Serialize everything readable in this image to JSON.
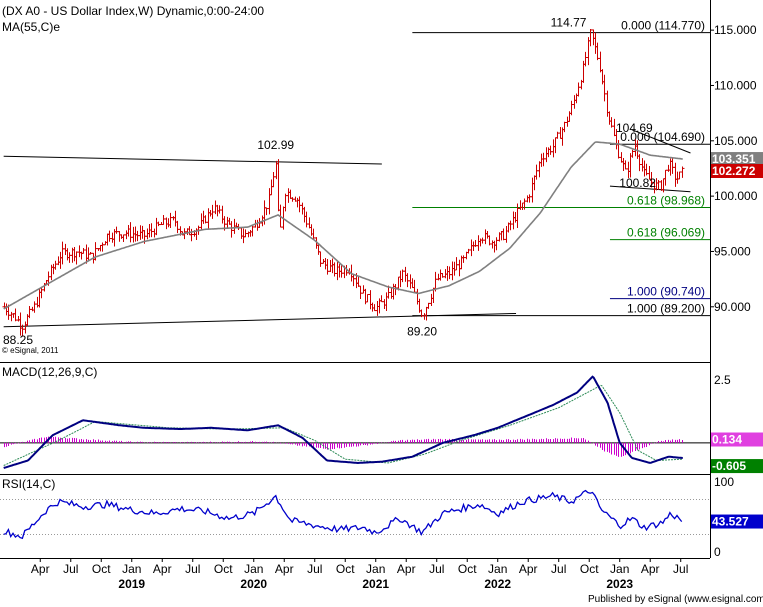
{
  "header": {
    "title": "(DX A0 - US Dollar Index,W) Dynamic,0:00-24:00",
    "ma_label": "MA(55,C)e",
    "copyright": "© eSignal, 2011",
    "footer": "Published by eSignal (www.esignal.com)"
  },
  "colors": {
    "price_bar": "#cc0000",
    "ma_line": "#808080",
    "fib_black": "#000000",
    "fib_green": "#008000",
    "fib_blue": "#000080",
    "macd_line": "#000080",
    "macd_signal": "#2e8b57",
    "macd_hist": "#cc00cc",
    "rsi_line": "#0000cc",
    "last_price_bg": "#cc0000",
    "ma_tag_bg": "#808080",
    "macd_hist_tag_bg": "#e040e0",
    "macd_tag_bg": "#008000",
    "rsi_tag_bg": "#0000cc"
  },
  "chart_data": [
    {
      "type": "line",
      "name": "price",
      "title": "(DX A0 - US Dollar Index,W) Dynamic,0:00-24:00",
      "ylim": [
        87,
        117
      ],
      "yticks": [
        "115.000",
        "110.000",
        "105.000",
        "100.000",
        "95.000",
        "90.000"
      ],
      "ytick_values": [
        115,
        110,
        105,
        100,
        95,
        90
      ],
      "x_tick_labels": [
        "Apr",
        "Jul",
        "Oct",
        "Jan",
        "Apr",
        "Jul",
        "Oct",
        "Jan",
        "Apr",
        "Jul",
        "Oct",
        "Jan",
        "Apr",
        "Jul",
        "Oct",
        "Jan",
        "Apr",
        "Jul",
        "Oct",
        "Jan",
        "Apr",
        "Jul"
      ],
      "x_tick_dates": [
        2018.25,
        2018.5,
        2018.75,
        2019.0,
        2019.25,
        2019.5,
        2019.75,
        2020.0,
        2020.25,
        2020.5,
        2020.75,
        2021.0,
        2021.25,
        2021.5,
        2021.75,
        2022.0,
        2022.25,
        2022.5,
        2022.75,
        2023.0,
        2023.25,
        2023.5
      ],
      "year_labels": [
        "2019",
        "2020",
        "2021",
        "2022",
        "2023"
      ],
      "year_dates": [
        2019.0,
        2020.0,
        2021.0,
        2022.0,
        2023.0
      ],
      "price_keypoints": [
        [
          2017.95,
          90.0
        ],
        [
          2018.05,
          89.0
        ],
        [
          2018.1,
          88.25
        ],
        [
          2018.2,
          90.0
        ],
        [
          2018.3,
          92.5
        ],
        [
          2018.42,
          94.8
        ],
        [
          2018.55,
          95.0
        ],
        [
          2018.67,
          94.5
        ],
        [
          2018.8,
          96.5
        ],
        [
          2018.95,
          96.7
        ],
        [
          2019.1,
          96.4
        ],
        [
          2019.25,
          97.5
        ],
        [
          2019.35,
          97.8
        ],
        [
          2019.42,
          96.5
        ],
        [
          2019.55,
          97.2
        ],
        [
          2019.67,
          99.0
        ],
        [
          2019.78,
          97.5
        ],
        [
          2019.92,
          96.4
        ],
        [
          2020.02,
          97.5
        ],
        [
          2020.12,
          99.5
        ],
        [
          2020.18,
          102.99
        ],
        [
          2020.21,
          96.0
        ],
        [
          2020.25,
          100.5
        ],
        [
          2020.35,
          99.8
        ],
        [
          2020.45,
          97.2
        ],
        [
          2020.55,
          94.0
        ],
        [
          2020.67,
          93.2
        ],
        [
          2020.78,
          93.5
        ],
        [
          2020.9,
          91.0
        ],
        [
          2021.0,
          89.9
        ],
        [
          2021.1,
          90.8
        ],
        [
          2021.22,
          93.0
        ],
        [
          2021.3,
          91.5
        ],
        [
          2021.38,
          89.2
        ],
        [
          2021.5,
          92.5
        ],
        [
          2021.6,
          93.0
        ],
        [
          2021.72,
          94.2
        ],
        [
          2021.85,
          96.5
        ],
        [
          2021.95,
          95.9
        ],
        [
          2022.05,
          96.5
        ],
        [
          2022.15,
          98.3
        ],
        [
          2022.25,
          100.0
        ],
        [
          2022.35,
          103.5
        ],
        [
          2022.45,
          104.5
        ],
        [
          2022.55,
          106.5
        ],
        [
          2022.62,
          108.5
        ],
        [
          2022.7,
          111.5
        ],
        [
          2022.76,
          114.77
        ],
        [
          2022.83,
          112.0
        ],
        [
          2022.9,
          107.5
        ],
        [
          2022.97,
          104.5
        ],
        [
          2023.05,
          102.0
        ],
        [
          2023.12,
          104.69
        ],
        [
          2023.2,
          102.0
        ],
        [
          2023.28,
          101.0
        ],
        [
          2023.33,
          100.82
        ],
        [
          2023.4,
          103.0
        ],
        [
          2023.46,
          101.5
        ],
        [
          2023.52,
          102.272
        ]
      ],
      "ma55": [
        [
          2017.95,
          89.8
        ],
        [
          2018.3,
          92.0
        ],
        [
          2018.7,
          94.5
        ],
        [
          2019.1,
          95.9
        ],
        [
          2019.6,
          97.0
        ],
        [
          2019.95,
          97.2
        ],
        [
          2020.2,
          98.3
        ],
        [
          2020.5,
          96.0
        ],
        [
          2020.8,
          93.0
        ],
        [
          2021.1,
          91.8
        ],
        [
          2021.35,
          91.2
        ],
        [
          2021.6,
          91.9
        ],
        [
          2021.85,
          93.2
        ],
        [
          2022.1,
          95.3
        ],
        [
          2022.35,
          98.5
        ],
        [
          2022.6,
          102.6
        ],
        [
          2022.8,
          104.9
        ],
        [
          2023.0,
          104.7
        ],
        [
          2023.25,
          103.7
        ],
        [
          2023.52,
          103.351
        ]
      ],
      "last_price": "102.272",
      "ma_value": "103.351",
      "trendlines": [
        {
          "from": [
            2017.95,
            103.6
          ],
          "to": [
            2021.05,
            102.9
          ]
        },
        {
          "from": [
            2017.95,
            88.2
          ],
          "to": [
            2022.15,
            89.4
          ]
        },
        {
          "from": [
            2023.1,
            106.0
          ],
          "to": [
            2023.58,
            103.9
          ]
        },
        {
          "from": [
            2022.92,
            100.9
          ],
          "to": [
            2023.58,
            100.4
          ]
        }
      ],
      "fib_levels": [
        {
          "label": "0.000 (114.770)",
          "value": 114.77,
          "color": "black",
          "from": 2021.3
        },
        {
          "label": "0.000 (104.690)",
          "value": 104.69,
          "color": "black",
          "from": 2022.92
        },
        {
          "label": "0.618 (98.968)",
          "value": 98.968,
          "color": "green",
          "from": 2021.3
        },
        {
          "label": "0.618 (96.069)",
          "value": 96.069,
          "color": "green",
          "from": 2022.92
        },
        {
          "label": "1.000 (90.740)",
          "value": 90.74,
          "color": "blue",
          "from": 2022.92
        },
        {
          "label": "1.000 (89.200)",
          "value": 89.2,
          "color": "black",
          "from": 2021.3
        }
      ],
      "annotations": [
        {
          "text": "114.77",
          "x": 2022.76,
          "y": 114.77
        },
        {
          "text": "104.69",
          "x": 2023.12,
          "y": 104.69
        },
        {
          "text": "102.99",
          "x": 2020.18,
          "y": 102.99
        },
        {
          "text": "100.82",
          "x": 2023.33,
          "y": 100.82
        },
        {
          "text": "89.20",
          "x": 2021.38,
          "y": 89.2
        },
        {
          "text": "88.25",
          "x": 2018.1,
          "y": 88.25
        }
      ]
    },
    {
      "type": "line",
      "name": "MACD(12,26,9,C)",
      "title": "MACD(12,26,9,C)",
      "ylim": [
        -1.0,
        2.9
      ],
      "yticks": [
        "2.5"
      ],
      "ytick_values": [
        2.5
      ],
      "macd_keypoints": [
        [
          2017.95,
          -1.0
        ],
        [
          2018.15,
          -0.7
        ],
        [
          2018.35,
          0.3
        ],
        [
          2018.6,
          0.9
        ],
        [
          2018.9,
          0.7
        ],
        [
          2019.1,
          0.6
        ],
        [
          2019.4,
          0.55
        ],
        [
          2019.65,
          0.6
        ],
        [
          2019.95,
          0.5
        ],
        [
          2020.2,
          0.7
        ],
        [
          2020.4,
          0.2
        ],
        [
          2020.6,
          -0.7
        ],
        [
          2020.85,
          -0.8
        ],
        [
          2021.05,
          -0.75
        ],
        [
          2021.3,
          -0.55
        ],
        [
          2021.55,
          0.0
        ],
        [
          2021.8,
          0.3
        ],
        [
          2022.0,
          0.6
        ],
        [
          2022.2,
          1.0
        ],
        [
          2022.45,
          1.5
        ],
        [
          2022.65,
          2.0
        ],
        [
          2022.78,
          2.65
        ],
        [
          2022.9,
          1.6
        ],
        [
          2023.0,
          0.0
        ],
        [
          2023.1,
          -0.6
        ],
        [
          2023.25,
          -0.8
        ],
        [
          2023.4,
          -0.55
        ],
        [
          2023.52,
          -0.605
        ]
      ],
      "signal_keypoints": [
        [
          2017.95,
          -0.9
        ],
        [
          2018.4,
          0.1
        ],
        [
          2018.7,
          0.85
        ],
        [
          2019.3,
          0.6
        ],
        [
          2019.8,
          0.55
        ],
        [
          2020.25,
          0.6
        ],
        [
          2020.5,
          0.1
        ],
        [
          2020.75,
          -0.65
        ],
        [
          2021.1,
          -0.8
        ],
        [
          2021.4,
          -0.45
        ],
        [
          2021.7,
          0.1
        ],
        [
          2022.1,
          0.7
        ],
        [
          2022.5,
          1.4
        ],
        [
          2022.85,
          2.3
        ],
        [
          2023.0,
          1.2
        ],
        [
          2023.15,
          -0.3
        ],
        [
          2023.3,
          -0.7
        ],
        [
          2023.52,
          -0.65
        ]
      ],
      "histogram_keypoints": [
        [
          2017.95,
          -0.15
        ],
        [
          2018.3,
          0.25
        ],
        [
          2018.6,
          0.15
        ],
        [
          2019.0,
          0.03
        ],
        [
          2019.5,
          0.02
        ],
        [
          2020.1,
          0.06
        ],
        [
          2020.35,
          -0.1
        ],
        [
          2020.6,
          -0.25
        ],
        [
          2020.9,
          -0.1
        ],
        [
          2021.2,
          0.1
        ],
        [
          2021.5,
          0.15
        ],
        [
          2021.9,
          0.12
        ],
        [
          2022.3,
          0.15
        ],
        [
          2022.7,
          0.2
        ],
        [
          2022.9,
          -0.4
        ],
        [
          2023.0,
          -0.55
        ],
        [
          2023.15,
          -0.3
        ],
        [
          2023.3,
          0.05
        ],
        [
          2023.45,
          0.134
        ],
        [
          2023.52,
          0.134
        ]
      ],
      "macd_value": "-0.605",
      "histogram_value": "0.134"
    },
    {
      "type": "line",
      "name": "RSI(14,C)",
      "title": "RSI(14,C)",
      "ylim": [
        0,
        100
      ],
      "yticks": [
        "100",
        "0"
      ],
      "ytick_values": [
        100,
        0
      ],
      "guide_levels": [
        75,
        25
      ],
      "rsi_keypoints": [
        [
          2017.95,
          30
        ],
        [
          2018.1,
          22
        ],
        [
          2018.3,
          60
        ],
        [
          2018.4,
          72
        ],
        [
          2018.6,
          65
        ],
        [
          2018.8,
          68
        ],
        [
          2019.0,
          60
        ],
        [
          2019.2,
          55
        ],
        [
          2019.4,
          62
        ],
        [
          2019.6,
          58
        ],
        [
          2019.8,
          48
        ],
        [
          2020.0,
          55
        ],
        [
          2020.18,
          80
        ],
        [
          2020.3,
          45
        ],
        [
          2020.5,
          38
        ],
        [
          2020.7,
          32
        ],
        [
          2020.9,
          35
        ],
        [
          2021.0,
          28
        ],
        [
          2021.2,
          48
        ],
        [
          2021.38,
          28
        ],
        [
          2021.55,
          55
        ],
        [
          2021.7,
          62
        ],
        [
          2021.85,
          68
        ],
        [
          2022.0,
          55
        ],
        [
          2022.2,
          72
        ],
        [
          2022.45,
          80
        ],
        [
          2022.6,
          72
        ],
        [
          2022.76,
          88
        ],
        [
          2022.85,
          60
        ],
        [
          2023.0,
          38
        ],
        [
          2023.1,
          48
        ],
        [
          2023.2,
          35
        ],
        [
          2023.35,
          42
        ],
        [
          2023.42,
          55
        ],
        [
          2023.52,
          43.527
        ]
      ],
      "rsi_value": "43.527"
    }
  ]
}
